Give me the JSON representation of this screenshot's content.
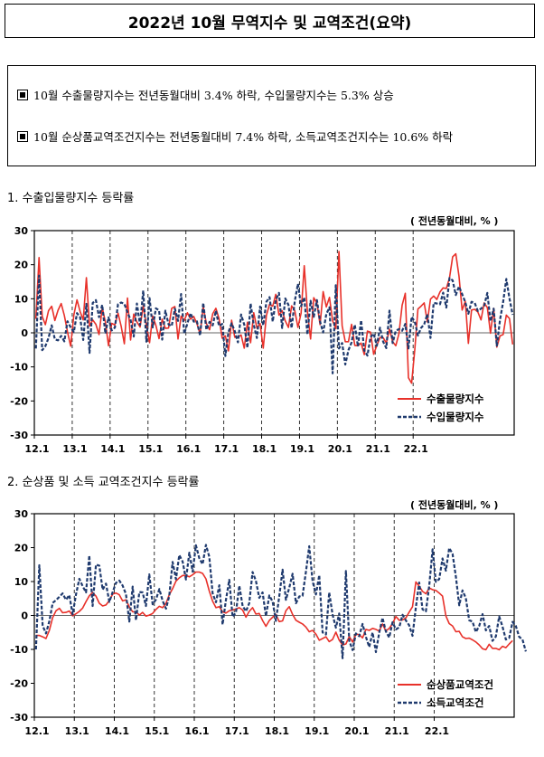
{
  "page": {
    "title": "2022년 10월 무역지수 및 교역조건(요약)",
    "summary": [
      "10월 수출물량지수는 전년동월대비 3.4% 하락, 수입물량지수는 5.3% 상승",
      "10월 순상품교역조건지수는 전년동월대비 7.4% 하락, 소득교역조건지수는 10.6% 하락"
    ]
  },
  "sections": [
    {
      "title": "1. 수출입물량지수 등락률",
      "unit": "( 전년동월대비, % )"
    },
    {
      "title": "2. 순상품 및 소득 교역조건지수 등락률",
      "unit": "( 전년동월대비, % )"
    }
  ],
  "colors": {
    "series_red": "#e8312a",
    "series_navy": "#1f3a6e"
  },
  "chart_data": [
    {
      "type": "line",
      "title": "",
      "xlabel": "",
      "ylabel": "",
      "ylim": [
        -30,
        30
      ],
      "yticks": [
        30,
        20,
        10,
        0,
        -10,
        -20,
        -30
      ],
      "x_tick_labels": [
        "12.1",
        "13.1",
        "14.1",
        "15.1",
        "16.1",
        "17.1",
        "18.1",
        "19.1",
        "20.1",
        "21.1",
        "22.1"
      ],
      "x_range": [
        "2012-01",
        "2022-10"
      ],
      "legend": "bottom-right",
      "grid": "dashed vertical lines at each January",
      "series": [
        {
          "name": "수출물량지수",
          "color": "#e8312a",
          "style": "solid",
          "values": [
            4.1,
            22.1,
            4.8,
            2.4,
            6.5,
            7.8,
            3.6,
            6.6,
            8.6,
            5.1,
            0.3,
            -3.9,
            5.2,
            9.7,
            6.2,
            3.8,
            16.2,
            2.0,
            3.8,
            2.5,
            -0.5,
            7.4,
            3.2,
            -3.8,
            2.8,
            2.3,
            5.8,
            1.9,
            -3.2,
            10.2,
            -2.1,
            5.5,
            3.2,
            1.7,
            7.9,
            2.3,
            -2.9,
            4.9,
            2.2,
            -1.7,
            4.0,
            1.3,
            1.4,
            7.2,
            7.7,
            -1.8,
            4.9,
            3.6,
            5.9,
            4.0,
            4.8,
            2.7,
            -0.3,
            7.6,
            2.7,
            0.9,
            5.6,
            7.2,
            4.2,
            -1.6,
            -0.9,
            -5.3,
            3.7,
            -1.3,
            -1.3,
            -0.6,
            -4.5,
            3.1,
            -2.9,
            5.9,
            1.4,
            2.7,
            -4.5,
            5.1,
            8.4,
            7.8,
            11.3,
            5.2,
            6.5,
            3.5,
            1.6,
            7.9,
            6.5,
            1.6,
            5.8,
            19.7,
            6.2,
            -1.8,
            10.3,
            8.7,
            2.4,
            12.1,
            7.6,
            10.4,
            3.5,
            1.2,
            23.9,
            2.1,
            -2.6,
            -2.6,
            2.5,
            -3.7,
            -3.8,
            -3.0,
            -6.4,
            0.5,
            0.2,
            -6.3,
            -3.7,
            -1.4,
            -1.4,
            -3.0,
            1.1,
            -2.6,
            -3.8,
            -0.2,
            8.1,
            11.6,
            -13.2,
            -14.8,
            -5.0,
            7.0,
            7.8,
            8.8,
            3.2,
            9.9,
            10.8,
            9.8,
            12.0,
            13.2,
            13.0,
            16.1,
            22.3,
            23.2,
            16.7,
            6.7,
            9.2,
            -3.1,
            6.7,
            6.9,
            6.1,
            3.8,
            8.8,
            7.4,
            -0.1,
            7.2,
            -4.2,
            -0.9,
            -0.5,
            5.2,
            4.2,
            -3.4
          ]
        },
        {
          "name": "수입물량지수",
          "color": "#1f3a6e",
          "style": "dashed",
          "values": [
            -4.6,
            16.8,
            -5.1,
            -3.9,
            -1.5,
            2.2,
            -1.9,
            -2.2,
            -0.9,
            -2.5,
            3.4,
            1.6,
            0.2,
            5.8,
            4.5,
            -2.1,
            8.5,
            -5.9,
            8.8,
            9.6,
            4.6,
            8.2,
            -0.2,
            4.5,
            0.7,
            1.5,
            8.4,
            8.9,
            8.5,
            6.0,
            3.8,
            -1.1,
            8.6,
            2.3,
            12.4,
            -2.6,
            10.2,
            1.6,
            7.2,
            6.6,
            -2.0,
            6.5,
            2.5,
            2.0,
            7.1,
            3.5,
            11.4,
            -0.3,
            2.8,
            5.8,
            3.3,
            3.4,
            -0.8,
            8.8,
            0.9,
            3.2,
            2.2,
            6.5,
            2.0,
            2.6,
            -6.8,
            0.2,
            2.8,
            0.5,
            -2.8,
            5.4,
            2.4,
            -4.4,
            8.6,
            2.3,
            -1.5,
            7.7,
            2.2,
            9.1,
            10.5,
            3.3,
            9.6,
            11.7,
            1.4,
            10.1,
            8.2,
            1.4,
            9.3,
            14.4,
            7.8,
            10.4,
            -0.5,
            9.4,
            4.7,
            9.6,
            3.3,
            0.1,
            5.5,
            7.5,
            -11.9,
            14.0,
            -4.6,
            -3.0,
            -9.3,
            -5.1,
            -2.8,
            2.4,
            -4.0,
            3.7,
            -5.2,
            -6.7,
            -1.3,
            -0.2,
            -3.8,
            1.5,
            -2.6,
            -4.5,
            6.5,
            -3.0,
            0.6,
            1.1,
            0.6,
            2.6,
            -4.6,
            4.7,
            3.3,
            -0.8,
            1.4,
            2.5,
            5.5,
            -1.5,
            8.8,
            8.6,
            8.4,
            11.8,
            7.4,
            16.1,
            15.4,
            11.1,
            13.6,
            11.4,
            9.0,
            5.6,
            9.1,
            8.8,
            6.4,
            7.1,
            8.0,
            11.7,
            3.4,
            7.1,
            -3.8,
            3.8,
            9.1,
            15.8,
            10.1,
            5.3
          ]
        }
      ]
    },
    {
      "type": "line",
      "title": "",
      "xlabel": "",
      "ylabel": "",
      "ylim": [
        -30,
        30
      ],
      "yticks": [
        30,
        20,
        10,
        0,
        -10,
        -20,
        -30
      ],
      "x_tick_labels": [
        "12.1",
        "13.1",
        "14.1",
        "15.1",
        "16.1",
        "17.1",
        "18.1",
        "19.1",
        "20.1",
        "21.1",
        "22.1"
      ],
      "x_range": [
        "2012-01",
        "2022-10"
      ],
      "legend": "bottom-right",
      "grid": "dashed vertical lines at each January",
      "series": [
        {
          "name": "순상품교역조건",
          "color": "#e8312a",
          "style": "solid",
          "values": [
            -5.9,
            -5.9,
            -6.3,
            -6.8,
            -4.4,
            -0.6,
            1.4,
            2.1,
            0.8,
            0.9,
            1.3,
            -0.1,
            0.5,
            1.2,
            2.2,
            4.1,
            5.8,
            6.8,
            5.7,
            3.6,
            2.8,
            3.1,
            4.4,
            6.3,
            6.6,
            6.1,
            4.3,
            4.6,
            2.5,
            1.1,
            1.1,
            0.1,
            0.9,
            -0.2,
            0.1,
            0.6,
            1.8,
            2.7,
            2.3,
            3.6,
            6.1,
            7.9,
            10.1,
            11.1,
            11.8,
            11.8,
            11.4,
            12.0,
            12.8,
            12.8,
            12.4,
            10.8,
            7.2,
            4.2,
            2.3,
            2.6,
            1.1,
            0.7,
            1.4,
            1.6,
            1.9,
            2.3,
            1.6,
            -0.5,
            1.2,
            2.3,
            0.4,
            0.6,
            -1.5,
            -3.2,
            -1.5,
            -0.5,
            0.3,
            -1.8,
            -1.6,
            1.4,
            2.6,
            0.3,
            -1.4,
            -2.0,
            -2.5,
            -3.4,
            -4.8,
            -4.4,
            -5.5,
            -7.3,
            -6.8,
            -6.3,
            -7.7,
            -7.1,
            -4.9,
            -7.3,
            -8.7,
            -8.4,
            -6.2,
            -7.8,
            -5.6,
            -5.6,
            -6.6,
            -4.1,
            -4.4,
            -3.8,
            -4.1,
            -4.6,
            -2.5,
            -4.6,
            -3.8,
            -2.4,
            -0.3,
            -1.4,
            -1.3,
            -0.7,
            1.0,
            2.6,
            9.9,
            8.6,
            7.1,
            6.4,
            8.1,
            7.6,
            7.4,
            6.6,
            5.7,
            -0.1,
            -2.4,
            -3.1,
            -4.8,
            -4.7,
            -6.3,
            -6.8,
            -6.7,
            -7.2,
            -7.8,
            -8.7,
            -9.8,
            -10.1,
            -8.5,
            -9.7,
            -9.7,
            -10.1,
            -9.1,
            -9.5,
            -8.4,
            -7.4
          ]
        },
        {
          "name": "소득교역조건",
          "color": "#1f3a6e",
          "style": "dashed",
          "values": [
            -10.0,
            14.8,
            -3.0,
            -5.3,
            -1.7,
            3.7,
            4.5,
            5.5,
            6.5,
            4.6,
            6.0,
            0.3,
            6.2,
            10.8,
            8.6,
            6.8,
            17.7,
            2.8,
            15.0,
            14.7,
            7.6,
            9.4,
            4.0,
            6.9,
            9.6,
            10.3,
            8.8,
            6.3,
            -1.8,
            8.5,
            -1.4,
            6.9,
            6.8,
            2.8,
            12.1,
            3.3,
            4.7,
            7.8,
            4.3,
            2.0,
            5.7,
            15.8,
            10.7,
            17.8,
            15.9,
            10.6,
            18.5,
            12.9,
            20.7,
            16.9,
            15.1,
            20.8,
            17.3,
            6.5,
            3.9,
            8.9,
            -2.7,
            4.5,
            10.5,
            -0.4,
            0.9,
            8.8,
            2.8,
            1.2,
            3.6,
            12.8,
            10.2,
            5.2,
            6.8,
            -0.2,
            5.9,
            4.1,
            -1.6,
            5.6,
            13.5,
            4.6,
            8.2,
            12.3,
            3.6,
            5.6,
            5.8,
            12.8,
            20.4,
            10.1,
            6.2,
            11.9,
            -5.0,
            -5.6,
            6.8,
            0.3,
            -3.6,
            0.6,
            -12.6,
            13.1,
            -7.5,
            -10.2,
            -5.3,
            -6.1,
            -2.5,
            -6.3,
            -9.3,
            -5.0,
            -10.8,
            -5.0,
            -0.7,
            -4.7,
            -6.5,
            -2.0,
            -4.1,
            -3.5,
            0.2,
            -1.5,
            -2.9,
            -6.0,
            2.4,
            9.7,
            1.8,
            1.2,
            8.8,
            19.5,
            9.9,
            10.7,
            16.8,
            13.2,
            19.9,
            18.2,
            11.4,
            3.0,
            7.4,
            5.1,
            -1.4,
            -1.8,
            -4.9,
            -3.1,
            0.4,
            -4.4,
            -3.1,
            -7.5,
            -6.2,
            -0.3,
            -3.3,
            -7.1,
            -6.6,
            -1.9,
            -3.1,
            -6.3,
            -7.1,
            -10.6
          ]
        }
      ]
    }
  ]
}
